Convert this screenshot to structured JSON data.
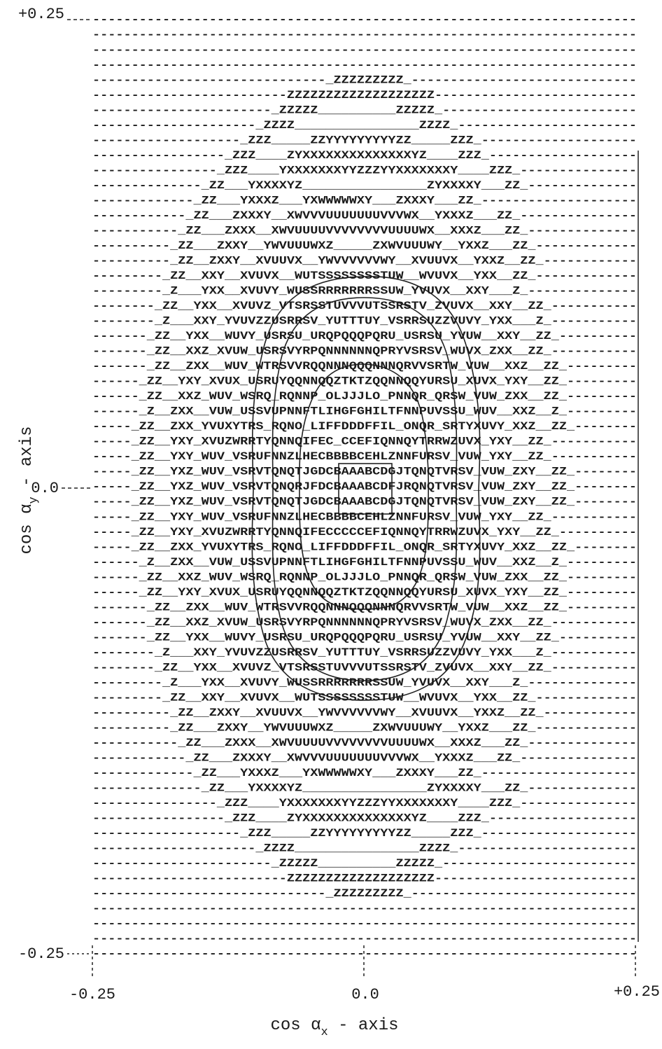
{
  "plot": {
    "rows": [
      "----------------------------------------------------------------------",
      "----------------------------------------------------------------------",
      "----------------------------------------------------------------------",
      "----------------------------------------------------------------------",
      "------------------------------_ZZZZZZZZZ_-----------------------------",
      "-------------------------ZZZZZZZZZZZZZZZZZZZ--------------------------",
      "-----------------------_ZZZZZ__________ZZZZZ_-------------------------",
      "---------------------_ZZZZ________________ZZZZ_-----------------------",
      "-------------------_ZZZ_____ZZYYYYYYYYYZZ_____ZZZ_--------------------",
      "-----------------_ZZZ____ZYXXXXXXXXXXXXXXYZ____ZZZ_-------------------",
      "----------------_ZZZ____YXXXXXXXYYZZZYYXXXXXXXY____ZZZ_---------------",
      "--------------_ZZ___YXXXXYZ________________ZYXXXXY___ZZ_--------------",
      "-------------_ZZ___YXXXZ___YXWWWWWXY___ZXXXY___ZZ_--------------------",
      "------------_ZZ___ZXXXY__XWVVVUUUUUUUVVVWX__YXXXZ___ZZ_---------------",
      "-----------_ZZ___ZXXX__XWVUUUUVVVVVVVVUUUUWX__XXXZ___ZZ_--------------",
      "----------_ZZ___ZXXY__YWVUUUWXZ_____ZXWVUUUWY__YXXZ___ZZ_-------------",
      "----------_ZZ__ZXXY__XVUUVX__YWVVVVVVWY__XVUUVX__YXXZ__ZZ_------------",
      "---------_ZZ__XXY__XVUVX__WUTSSSSSSSSTUW__WVUVX__YXX__ZZ_-------------",
      "---------_Z___YXX__XVUVY_WUSSRRRRRRRSSUW_YVUVX__XXY___Z_--------------",
      "--------_ZZ__YXX__XVUVZ_VTSRSSTUVVVUTSSRSTV_ZVUVX__XXY__ZZ_-----------",
      "--------_Z___XXY_YVUVZZUSRRSV_YUTTTUY_VSRRSUZZVUVY_YXX___Z_-----------",
      "-------_ZZ__YXX__WUVY_USRSU_URQPQQQPQRU_USRSU_YVUW__XXY__ZZ_----------",
      "-------_ZZ__XXZ_XVUW_USRSVYRPQNNNNNNQPRYVSRSV_WUVX_ZXX__ZZ_-----------",
      "-------_ZZ__ZXX__WUV_WTRSVVRQQNNNQQQNNNQRVVSRTW_VUW__XXZ__ZZ_---------",
      "------_ZZ__YXY_XVUX_USRUYQQNNQQZTKTZQQNNQQYURSU_XUVX_YXY__ZZ_---------",
      "------_ZZ__XXZ_WUV_WSRQ_RQNNP_OLJJJLO_PNNQR_QRSW_VUW_ZXX__ZZ_---------",
      "------_Z__ZXX__VUW_USSVUPNNFTLIHGFGHILTFNNPUVSSU_WUV__XXZ__Z_---------",
      "-----_ZZ__ZXX_YVUXYTRS_RQNO_LIFFDDDFFIL_ONQR_SRTYXUVY_XXZ__ZZ_--------",
      "-----_ZZ__YXY_XVUZWRRTYQNNQIFEC_CCEFIQNNQYTRRWZUVX_YXY__ZZ_-----------",
      "-----_ZZ__YXY_WUV_VSRUFNNZLHECBBBBCEHLZNNFURSV_VUW_YXY__ZZ_-----------",
      "-----_ZZ__YXZ_WUV_VSRVTQNQTJGDCBAAABCDGJTQNQTVRSV_VUW_ZXY__ZZ_--------",
      "-----_ZZ__YXZ_WUV_VSRVTQNQRJFDCBAAABCDFJRQNQTVRSV_VUW_ZXY__ZZ_--------",
      "-----_ZZ__YXZ_WUV_VSRVTQNQTJGDCBAAABCDGJTQNQTVRSV_VUW_ZXY__ZZ_--------",
      "-----_ZZ__YXY_WUV_VSRUFNNZLHECBBBBCEHLZNNFURSV_VUW_YXY__ZZ_-----------",
      "-----_ZZ__YXY_XVUZWRRTYQNNQIFECCCCCEFIQNNQYTRRWZUVX_YXY__ZZ_----------",
      "-----_ZZ__ZXX_YVUXYTRS_RQNO_LIFFDDDFFIL_ONQR_SRTYXUVY_XXZ__ZZ_--------",
      "------_Z__ZXX__VUW_USSVUPNNFTLIHGFGHILTFNNPUVSSU_WUV__XXZ__Z_---------",
      "------_ZZ__XXZ_WUV_WSRQ_RQNNP_OLJJJLO_PNNQR_QRSW_VUW_ZXX__ZZ_---------",
      "------_ZZ__YXY_XVUX_USRUYQQNNQQZTKTZQQNNQQYURSU_XUVX_YXY__ZZ_---------",
      "-------_ZZ__ZXX__WUV_WTRSVVRQQNNNQQQNNNQRVVSRTW_VUW__XXZ__ZZ_---------",
      "-------_ZZ__XXZ_XVUW_USRSVYRPQNNNNNNQPRYVSRSV_WUVX_ZXX__ZZ_-----------",
      "-------_ZZ__YXX__WUVY_USRSU_URQPQQQPQRU_USRSU_YVUW__XXY__ZZ_----------",
      "--------_Z___XXY_YVUVZZUSRRSV_YUTTTUY_VSRRSUZZVUVY_YXX___Z_-----------",
      "--------_ZZ__YXX__XVUVZ_VTSRSSTUVVVUTSSRSTV_ZVUVX__XXY__ZZ_-----------",
      "---------_Z___YXX__XVUVY_WUSSRRRRRRRSSUW_YVUVX__XXY___Z_--------------",
      "---------_ZZ__XXY__XVUVX__WUTSSSSSSSSTUW__WVUVX__YXX__ZZ_-------------",
      "----------_ZZ__ZXXY__XVUUVX__YWVVVVVVWY__XVUUVX__YXXZ__ZZ_------------",
      "----------_ZZ___ZXXY__YWVUUUWXZ_____ZXWVUUUWY__YXXZ___ZZ_-------------",
      "-----------_ZZ___ZXXX__XWVUUUUVVVVVVVVUUUUWX__XXXZ___ZZ_--------------",
      "------------_ZZ___ZXXXY__XWVVVUUUUUUUVVVWX__YXXXZ___ZZ_---------------",
      "-------------_ZZ___YXXXZ___YXWWWWWXY___ZXXXY___ZZ_--------------------",
      "--------------_ZZ___YXXXXYZ________________ZYXXXXY___ZZ_--------------",
      "----------------_ZZZ____YXXXXXXXYYZZZYYXXXXXXXY____ZZZ_---------------",
      "-----------------_ZZZ____ZYXXXXXXXXXXXXXXYZ____ZZZ_-------------------",
      "-------------------_ZZZ_____ZZYYYYYYYYYZZ_____ZZZ_--------------------",
      "---------------------_ZZZZ________________ZZZZ_-----------------------",
      "-----------------------_ZZZZZ__________ZZZZZ_-------------------------",
      "-------------------------ZZZZZZZZZZZZZZZZZZZ--------------------------",
      "------------------------------_ZZZZZZZZZ_-----------------------------",
      "----------------------------------------------------------------------",
      "----------------------------------------------------------------------",
      "----------------------------------------------------------------------",
      "----------------------------------------------------------------------"
    ],
    "y_tick_labels": [
      "+0.25",
      "0.0",
      "-0.25"
    ],
    "x_tick_labels": [
      "-0.25",
      "0.0",
      "+0.25"
    ],
    "x_axis_label": {
      "base": "cos α",
      "subscript": "x",
      "suffix": " - axis"
    },
    "y_axis_label": {
      "base": "cos α",
      "subscript": "y",
      "suffix": " - axis"
    }
  }
}
